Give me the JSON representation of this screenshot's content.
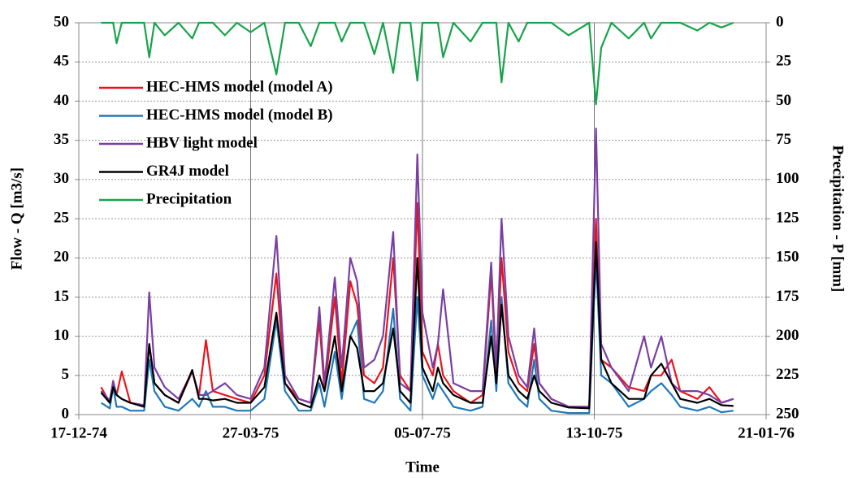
{
  "chart_data": {
    "type": "line",
    "x_label": "Time",
    "y_label": "Flow - Q [m3/s]",
    "y2_label": "Precipitation - P [mm]",
    "xlim": [
      "1974-12-17",
      "1976-01-21"
    ],
    "xticks": [
      {
        "value": "1974-12-17",
        "label": "17-12-74"
      },
      {
        "value": "1975-03-27",
        "label": "27-03-75"
      },
      {
        "value": "1975-07-05",
        "label": "05-07-75"
      },
      {
        "value": "1975-10-13",
        "label": "13-10-75"
      },
      {
        "value": "1976-01-21",
        "label": "21-01-76"
      }
    ],
    "ylim": [
      0,
      50
    ],
    "yticks": [
      0,
      5,
      10,
      15,
      20,
      25,
      30,
      35,
      40,
      45,
      50
    ],
    "y2lim": [
      250,
      0
    ],
    "y2ticks": [
      0,
      25,
      50,
      75,
      100,
      125,
      150,
      175,
      200,
      225,
      250
    ],
    "grid": true,
    "legend": "upper left",
    "x": [
      "1974-12-30",
      "1975-01-04",
      "1975-01-06",
      "1975-01-08",
      "1975-01-11",
      "1975-01-16",
      "1975-01-24",
      "1975-01-27",
      "1975-01-30",
      "1975-02-05",
      "1975-02-13",
      "1975-02-21",
      "1975-02-25",
      "1975-03-01",
      "1975-03-05",
      "1975-03-12",
      "1975-03-19",
      "1975-03-27",
      "1975-04-04",
      "1975-04-11",
      "1975-04-16",
      "1975-04-24",
      "1975-05-01",
      "1975-05-06",
      "1975-05-09",
      "1975-05-15",
      "1975-05-19",
      "1975-05-24",
      "1975-05-28",
      "1975-06-01",
      "1975-06-07",
      "1975-06-12",
      "1975-06-18",
      "1975-06-22",
      "1975-06-28",
      "1975-07-02",
      "1975-07-05",
      "1975-07-11",
      "1975-07-14",
      "1975-07-17",
      "1975-07-23",
      "1975-08-02",
      "1975-08-09",
      "1975-08-14",
      "1975-08-17",
      "1975-08-20",
      "1975-08-24",
      "1975-08-30",
      "1975-09-04",
      "1975-09-08",
      "1975-09-11",
      "1975-09-18",
      "1975-09-28",
      "1975-10-10",
      "1975-10-14",
      "1975-10-17",
      "1975-10-23",
      "1975-11-02",
      "1975-11-11",
      "1975-11-15",
      "1975-11-21",
      "1975-11-27",
      "1975-12-02",
      "1975-12-12",
      "1975-12-19",
      "1975-12-26",
      "1976-01-02"
    ],
    "series": [
      {
        "name": "Precipitation",
        "color": "#17a34a",
        "axis": "y2",
        "values": [
          0,
          0,
          0,
          13,
          0,
          0,
          0,
          22,
          0,
          8,
          0,
          10,
          0,
          0,
          0,
          8,
          0,
          6,
          0,
          33,
          0,
          0,
          15,
          0,
          0,
          0,
          12,
          0,
          0,
          0,
          20,
          0,
          32,
          0,
          0,
          37,
          0,
          0,
          0,
          22,
          0,
          12,
          0,
          0,
          0,
          38,
          0,
          12,
          0,
          0,
          0,
          0,
          8,
          0,
          52,
          16,
          0,
          10,
          0,
          10,
          0,
          0,
          0,
          5,
          0,
          3,
          0
        ]
      },
      {
        "name": "HEC-HMS model (model A)",
        "color": "#e8141c",
        "values": [
          3.5,
          1.5,
          4,
          2.5,
          5.5,
          1.5,
          1.2,
          9,
          4,
          2.5,
          1.5,
          5.5,
          2.5,
          9.5,
          3,
          2.5,
          2,
          1.5,
          5,
          18,
          4,
          2,
          1.5,
          12,
          3,
          15,
          4,
          17,
          14,
          5,
          4,
          6,
          20,
          5,
          3,
          27,
          8,
          5,
          9,
          5,
          3,
          1.5,
          2.5,
          18,
          5,
          20,
          8,
          4,
          3,
          9,
          4,
          2,
          1,
          1,
          25,
          7,
          6,
          3.5,
          3,
          5,
          5,
          7,
          3,
          2,
          3.5,
          1.5,
          2
        ]
      },
      {
        "name": "HEC-HMS model (model B)",
        "color": "#1f78b8",
        "values": [
          1.5,
          0.8,
          3.5,
          1,
          1,
          0.5,
          0.5,
          7,
          3,
          1,
          0.5,
          2,
          1,
          3,
          1,
          1,
          0.5,
          0.5,
          2,
          12,
          3,
          0.5,
          0.5,
          4,
          1,
          8,
          2,
          10,
          12,
          2,
          1.5,
          3,
          13.5,
          2,
          0.5,
          15,
          5,
          2,
          4,
          3,
          1,
          0.5,
          1,
          12,
          3,
          15,
          4,
          2,
          1,
          7,
          2,
          0.5,
          0.2,
          0.2,
          20,
          5,
          4,
          1,
          2,
          3,
          4,
          2.5,
          1,
          0.5,
          1,
          0.3,
          0.5
        ]
      },
      {
        "name": "HBV light model",
        "color": "#7a3fa3",
        "values": [
          3,
          1.8,
          4.3,
          2.5,
          2,
          1.5,
          1.2,
          15.6,
          6,
          3.5,
          2,
          5.5,
          2.5,
          2.5,
          3,
          4,
          2.5,
          2,
          6,
          22.8,
          5,
          2,
          1.5,
          13.7,
          4,
          17.5,
          6,
          20,
          17,
          6,
          7,
          10,
          23.3,
          4,
          3,
          33.2,
          13,
          6,
          9,
          16,
          4,
          3,
          3,
          19.4,
          6,
          25,
          10,
          5,
          3.5,
          11,
          4,
          2,
          1,
          1,
          36.5,
          9,
          6,
          3,
          10,
          6,
          10,
          4,
          3,
          3,
          2.5,
          1.5,
          2
        ]
      },
      {
        "name": "GR4J model",
        "color": "#000000",
        "values": [
          2.8,
          1.5,
          3.5,
          2.5,
          2,
          1.5,
          1,
          9,
          4,
          2.5,
          1.5,
          5.7,
          2,
          2,
          1.8,
          2,
          1.5,
          1.5,
          3.5,
          13,
          4,
          1.5,
          0.9,
          5,
          3,
          10,
          3,
          10,
          8.5,
          3,
          3,
          4,
          11,
          3,
          1.5,
          20,
          6,
          3,
          6,
          4,
          2.5,
          1.5,
          1.5,
          10,
          4,
          14,
          5,
          3,
          2,
          5,
          3,
          1.5,
          0.9,
          0.8,
          22,
          7,
          4,
          2,
          2,
          5,
          6.5,
          4,
          2,
          1.5,
          2,
          1.2,
          1.1
        ]
      }
    ]
  }
}
